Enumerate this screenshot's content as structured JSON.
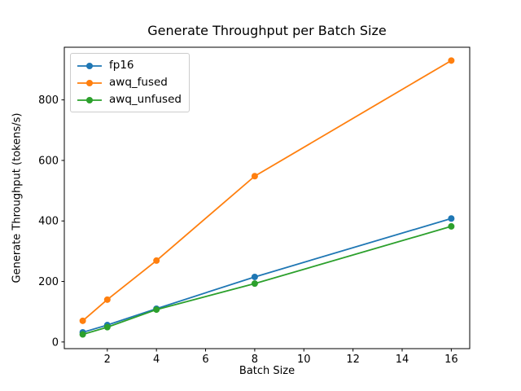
{
  "chart_data": {
    "type": "line",
    "title": "Generate Throughput per Batch Size",
    "xlabel": "Batch Size",
    "ylabel": "Generate Throughput (tokens/s)",
    "x": [
      1,
      2,
      4,
      8,
      16
    ],
    "series": [
      {
        "name": "fp16",
        "color": "#1f77b4",
        "values": [
          32,
          56,
          110,
          215,
          408
        ]
      },
      {
        "name": "awq_fused",
        "color": "#ff7f0e",
        "values": [
          70,
          140,
          269,
          548,
          930
        ]
      },
      {
        "name": "awq_unfused",
        "color": "#2ca02c",
        "values": [
          25,
          49,
          107,
          193,
          382
        ]
      }
    ],
    "xticks": [
      2,
      4,
      6,
      8,
      10,
      12,
      14,
      16
    ],
    "yticks": [
      0,
      200,
      400,
      600,
      800
    ],
    "xlim": [
      0.25,
      16.75
    ],
    "ylim": [
      -22,
      974
    ],
    "grid": false,
    "marker": "o",
    "legend_position": "upper left"
  }
}
